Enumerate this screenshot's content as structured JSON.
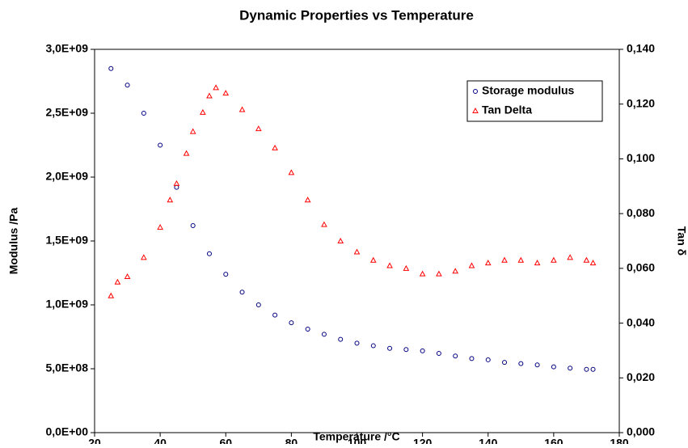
{
  "chart_data": {
    "type": "scatter",
    "title": "Dynamic Properties vs Temperature",
    "x_label": "Temperature /°C",
    "y_label": "Modulus /Pa",
    "y2_label": "Tan δ",
    "xlim": [
      20,
      180
    ],
    "xticks": [
      20,
      40,
      60,
      80,
      100,
      120,
      140,
      160,
      180
    ],
    "ylim": [
      0,
      3000000000
    ],
    "yticks": [
      {
        "value": 0,
        "label": "0,0E+00"
      },
      {
        "value": 500000000,
        "label": "5,0E+08"
      },
      {
        "value": 1000000000,
        "label": "1,0E+09"
      },
      {
        "value": 1500000000,
        "label": "1,5E+09"
      },
      {
        "value": 2000000000,
        "label": "2,0E+09"
      },
      {
        "value": 2500000000,
        "label": "2,5E+09"
      },
      {
        "value": 3000000000,
        "label": "3,0E+09"
      }
    ],
    "y2lim": [
      0,
      0.14
    ],
    "y2ticks": [
      {
        "value": 0,
        "label": "0,000"
      },
      {
        "value": 0.02,
        "label": "0,020"
      },
      {
        "value": 0.04,
        "label": "0,040"
      },
      {
        "value": 0.06,
        "label": "0,060"
      },
      {
        "value": 0.08,
        "label": "0,080"
      },
      {
        "value": 0.1,
        "label": "0,100"
      },
      {
        "value": 0.12,
        "label": "0,120"
      },
      {
        "value": 0.14,
        "label": "0,140"
      }
    ],
    "legend": "top-right",
    "series": [
      {
        "name": "Storage modulus",
        "color": "#000080",
        "marker": "circle",
        "x": [
          25,
          30,
          35,
          40,
          45,
          50,
          55,
          60,
          65,
          70,
          75,
          80,
          85,
          90,
          95,
          100,
          105,
          110,
          115,
          120,
          125,
          130,
          135,
          140,
          145,
          150,
          155,
          160,
          165,
          170,
          172
        ],
        "values": [
          2850000000,
          2720000000,
          2500000000,
          2250000000,
          1920000000,
          1620000000,
          1400000000,
          1240000000,
          1100000000,
          1000000000,
          920000000,
          860000000,
          810000000,
          770000000,
          730000000,
          700000000,
          680000000,
          660000000,
          650000000,
          640000000,
          620000000,
          600000000,
          580000000,
          570000000,
          550000000,
          540000000,
          530000000,
          515000000,
          505000000,
          495000000,
          495000000
        ]
      },
      {
        "name": "Tan Delta",
        "color": "#ff0000",
        "marker": "triangle",
        "axis": "y2",
        "x": [
          25,
          27,
          30,
          35,
          40,
          43,
          45,
          48,
          50,
          53,
          55,
          57,
          60,
          65,
          70,
          75,
          80,
          85,
          90,
          95,
          100,
          105,
          110,
          115,
          120,
          125,
          130,
          135,
          140,
          145,
          150,
          155,
          160,
          165,
          170,
          172
        ],
        "values": [
          0.05,
          0.055,
          0.057,
          0.064,
          0.075,
          0.085,
          0.091,
          0.102,
          0.11,
          0.117,
          0.123,
          0.126,
          0.124,
          0.118,
          0.111,
          0.104,
          0.095,
          0.085,
          0.076,
          0.07,
          0.066,
          0.063,
          0.061,
          0.06,
          0.058,
          0.058,
          0.059,
          0.061,
          0.062,
          0.063,
          0.063,
          0.062,
          0.063,
          0.064,
          0.063,
          0.062
        ]
      }
    ]
  }
}
